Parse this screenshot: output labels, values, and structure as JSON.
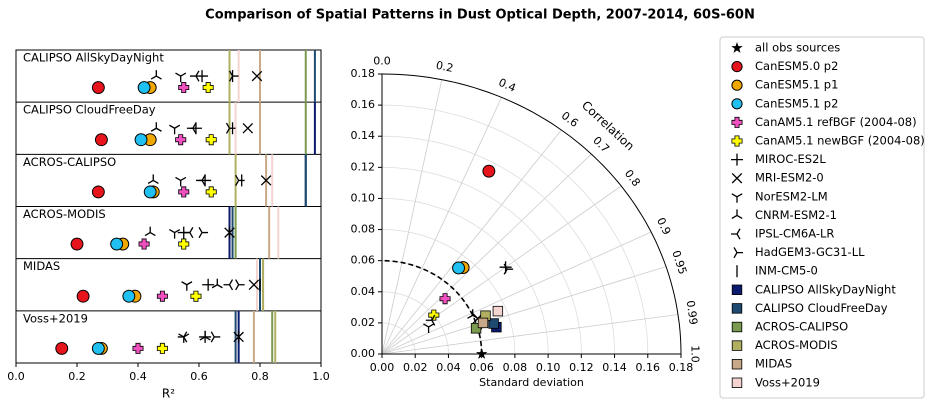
{
  "chart_data": [
    {
      "type": "strip",
      "title": "Comparison of Spatial Patterns in Dust Optical Depth, 2007-2014, 60S-60N",
      "categories": [
        "CALIPSO AllSkyDayNight",
        "CALIPSO CloudFreeDay",
        "ACROS-CALIPSO",
        "ACROS-MODIS",
        "MIDAS",
        "Voss+2019"
      ],
      "xlabel": "R²",
      "xlim": [
        0,
        1
      ],
      "xticks": [
        {
          "value": 0,
          "label": "0.0"
        },
        0.2,
        0.4,
        0.6,
        0.8,
        {
          "value": 1,
          "label": "1.0"
        }
      ],
      "series": [
        {
          "values": [
            0.27,
            0.28,
            0.27,
            0.2,
            0.22,
            0.15
          ]
        },
        {
          "values": [
            0.44,
            0.44,
            0.45,
            0.35,
            0.39,
            0.28
          ]
        },
        {
          "values": [
            0.42,
            0.41,
            0.44,
            0.33,
            0.37,
            0.27
          ]
        },
        {
          "values": [
            0.55,
            0.54,
            0.55,
            0.42,
            0.48,
            0.4
          ]
        },
        {
          "values": [
            0.63,
            0.64,
            0.64,
            0.55,
            0.59,
            0.48
          ]
        },
        {
          "values": [
            0.61,
            0.59,
            0.62,
            0.55,
            0.63,
            0.62
          ]
        },
        {
          "values": [
            0.79,
            0.76,
            0.82,
            0.7,
            0.78,
            0.73
          ]
        },
        {
          "values": [
            0.54,
            0.52,
            0.54,
            0.52,
            0.56,
            0.55
          ]
        },
        {
          "values": [
            0.46,
            0.46,
            0.45,
            0.44,
            0.66,
            0.62
          ]
        },
        {
          "values": [
            0.59,
            0.58,
            0.61,
            0.57,
            0.7,
            0.55
          ]
        },
        {
          "values": [
            0.71,
            0.7,
            0.73,
            0.61,
            0.73,
            0.65
          ]
        },
        {
          "values": [
            0.71,
            0.71,
            0.74,
            0.7,
            0.8,
            0.73
          ]
        },
        {
          "values": [
            null,
            0.98,
            0.95,
            0.7,
            0.8,
            0.73
          ]
        },
        {
          "values": [
            0.98,
            null,
            0.95,
            0.71,
            0.8,
            0.72
          ]
        },
        {
          "values": [
            0.95,
            0.95,
            null,
            0.72,
            0.81,
            0.84
          ]
        },
        {
          "values": [
            0.7,
            0.7,
            0.72,
            null,
            0.81,
            0.85
          ]
        },
        {
          "values": [
            0.8,
            0.8,
            0.82,
            0.83,
            null,
            0.78
          ]
        },
        {
          "values": [
            0.73,
            0.72,
            0.84,
            0.86,
            0.79,
            null
          ]
        }
      ]
    },
    {
      "type": "taylor",
      "xlabel": "Standard deviation",
      "corr_label": "Correlation",
      "rlim": [
        0,
        0.18
      ],
      "rticks": [
        {
          "value": 0,
          "label": "0.00"
        },
        {
          "value": 0.02,
          "label": "0.02"
        },
        {
          "value": 0.04,
          "label": "0.04"
        },
        {
          "value": 0.06,
          "label": "0.06"
        },
        {
          "value": 0.08,
          "label": "0.08"
        },
        {
          "value": 0.1,
          "label": "0.10"
        },
        {
          "value": 0.12,
          "label": "0.12"
        },
        {
          "value": 0.14,
          "label": "0.14"
        },
        {
          "value": 0.16,
          "label": "0.16"
        },
        {
          "value": 0.18,
          "label": "0.18"
        }
      ],
      "corr_ticks": [
        {
          "value": 0,
          "label": "0.0"
        },
        0.2,
        0.4,
        0.6,
        0.7,
        0.8,
        0.9,
        0.95,
        0.99,
        {
          "value": 1,
          "label": "1.0"
        }
      ],
      "ref_std": 0.06,
      "series": [
        {
          "name": "all obs sources",
          "color": "#000000",
          "marker": "star",
          "std": 0.06,
          "corr": 1
        },
        {
          "name": "CanESM5.0 p2",
          "color": "#e8141c",
          "marker": "circle",
          "std": 0.134,
          "corr": 0.48
        },
        {
          "name": "CanESM5.1 p1",
          "color": "#f0a800",
          "marker": "circle",
          "std": 0.074,
          "corr": 0.66
        },
        {
          "name": "CanESM5.1 p2",
          "color": "#20c0f0",
          "marker": "circle",
          "std": 0.072,
          "corr": 0.64
        },
        {
          "name": "CanAM5.1 refBGF (2004-08)",
          "color": "#f050c0",
          "marker": "pluspatch",
          "std": 0.052,
          "corr": 0.73
        },
        {
          "name": "CanAM5.1 newBGF (2004-08)",
          "color": "#ffff00",
          "marker": "pluspatch",
          "std": 0.04,
          "corr": 0.78
        },
        {
          "name": "MIROC-ES2L",
          "color": "#000000",
          "marker": "plus",
          "std": 0.093,
          "corr": 0.8
        },
        {
          "name": "MRI-ESM2-0",
          "color": "#000000",
          "marker": "x",
          "std": 0.062,
          "corr": 0.93
        },
        {
          "name": "NorESM2-LM",
          "color": "#000000",
          "marker": "tri_down",
          "std": 0.033,
          "corr": 0.85
        },
        {
          "name": "CNRM-ESM2-1",
          "color": "#000000",
          "marker": "tri_up",
          "std": 0.06,
          "corr": 0.91
        },
        {
          "name": "IPSL-CM6A-LR",
          "color": "#000000",
          "marker": "tri_left",
          "std": 0.037,
          "corr": 0.81
        },
        {
          "name": "HadGEM3-GC31-LL",
          "color": "#000000",
          "marker": "tri_right",
          "std": 0.093,
          "corr": 0.81
        },
        {
          "name": "INM-CM5-0",
          "color": "#000000",
          "marker": "vline",
          "std": 0.063,
          "corr": 0.95
        },
        {
          "name": "CALIPSO AllSkyDayNight",
          "color": "#0a1a6e",
          "marker": "square",
          "std": 0.071,
          "corr": 0.97
        },
        {
          "name": "CALIPSO CloudFreeDay",
          "color": "#1d4a6e",
          "marker": "square",
          "std": 0.07,
          "corr": 0.96
        },
        {
          "name": "ACROS-CALIPSO",
          "color": "#7a9a50",
          "marker": "square",
          "std": 0.059,
          "corr": 0.96
        },
        {
          "name": "ACROS-MODIS",
          "color": "#b0b060",
          "marker": "square",
          "std": 0.067,
          "corr": 0.93
        },
        {
          "name": "MIDAS",
          "color": "#c8a888",
          "marker": "square",
          "std": 0.064,
          "corr": 0.95
        },
        {
          "name": "Voss+2019",
          "color": "#f4d4d0",
          "marker": "square",
          "std": 0.075,
          "corr": 0.93
        }
      ]
    }
  ]
}
